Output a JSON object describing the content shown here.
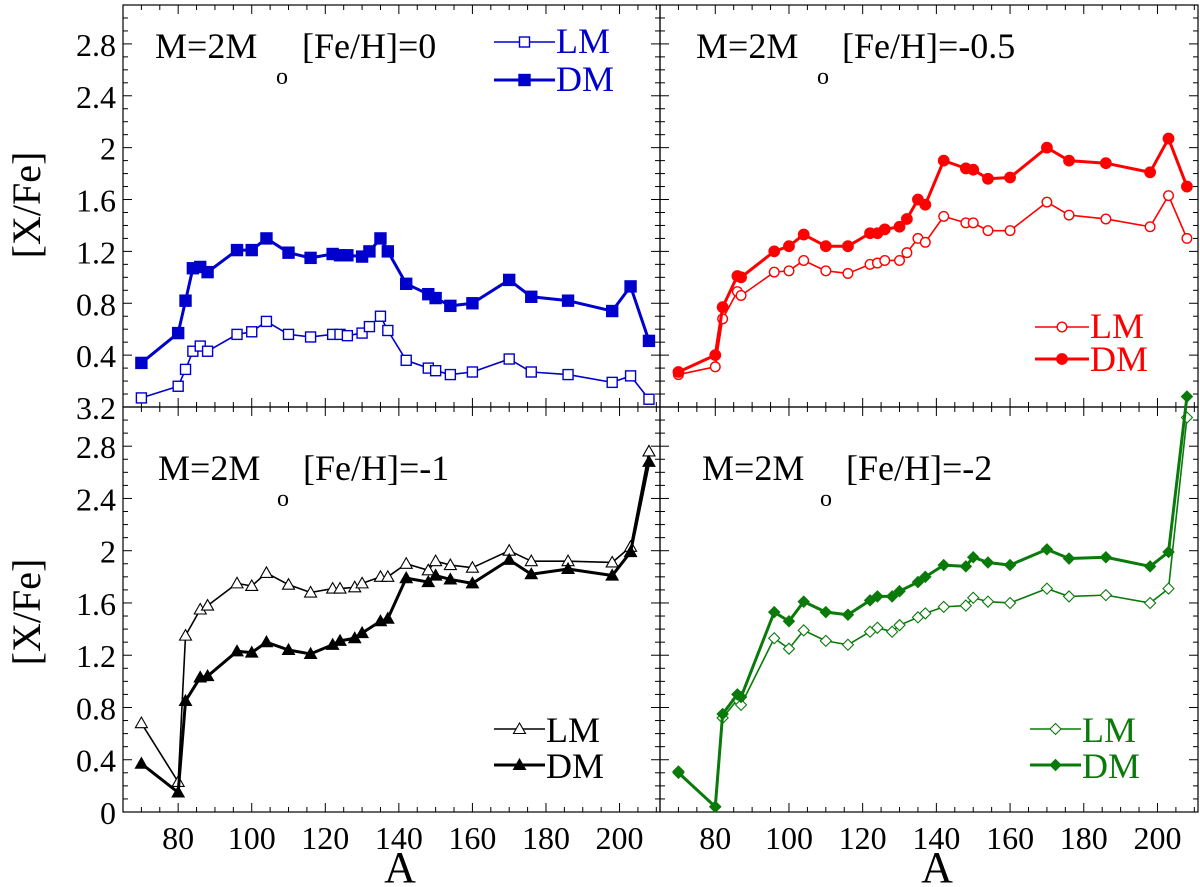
{
  "chart_data": [
    {
      "type": "line",
      "title": "M=2M",
      "title_subscript": "o",
      "metallicity": "[Fe/H]=0",
      "xlabel": "",
      "ylabel": "[X/Fe]",
      "xlim": [
        65,
        211
      ],
      "ylim": [
        0,
        3.1
      ],
      "color": "#0000cc",
      "marker": "square",
      "legend_position": "top-right",
      "yticks": [
        "3.2",
        "0.4",
        "0.8",
        "1.2",
        "1.6",
        "2",
        "2.4",
        "2.8"
      ],
      "x": [
        70,
        80,
        82,
        84,
        86,
        88,
        96,
        100,
        104,
        110,
        116,
        122,
        124,
        126,
        130,
        132,
        135,
        137,
        142,
        148,
        150,
        154,
        160,
        170,
        176,
        186,
        198,
        203,
        208
      ],
      "series": [
        {
          "name": "LM",
          "filled": false,
          "values": [
            0.07,
            0.16,
            0.29,
            0.43,
            0.47,
            0.43,
            0.56,
            0.58,
            0.66,
            0.56,
            0.54,
            0.56,
            0.56,
            0.55,
            0.57,
            0.62,
            0.7,
            0.59,
            0.36,
            0.3,
            0.28,
            0.25,
            0.27,
            0.37,
            0.27,
            0.25,
            0.19,
            0.24,
            0.06
          ]
        },
        {
          "name": "DM",
          "filled": true,
          "values": [
            0.34,
            0.57,
            0.82,
            1.07,
            1.08,
            1.04,
            1.21,
            1.21,
            1.3,
            1.19,
            1.15,
            1.18,
            1.17,
            1.17,
            1.16,
            1.2,
            1.3,
            1.2,
            0.95,
            0.87,
            0.84,
            0.78,
            0.8,
            0.98,
            0.85,
            0.82,
            0.74,
            0.93,
            0.51
          ]
        }
      ]
    },
    {
      "type": "line",
      "title": "M=2M",
      "title_subscript": "o",
      "metallicity": "[Fe/H]=-0.5",
      "xlabel": "",
      "ylabel": "",
      "xlim": [
        65,
        211
      ],
      "ylim": [
        0,
        3.1
      ],
      "color": "#ff0000",
      "marker": "circle",
      "legend_position": "bottom-right",
      "x": [
        70,
        80,
        82,
        86,
        87,
        96,
        100,
        104,
        110,
        116,
        122,
        124,
        126,
        130,
        132,
        135,
        137,
        142,
        148,
        150,
        154,
        160,
        170,
        176,
        186,
        198,
        203,
        208
      ],
      "series": [
        {
          "name": "LM",
          "filled": false,
          "values": [
            0.25,
            0.31,
            0.68,
            0.89,
            0.86,
            1.04,
            1.05,
            1.13,
            1.05,
            1.03,
            1.1,
            1.11,
            1.13,
            1.13,
            1.19,
            1.3,
            1.27,
            1.47,
            1.42,
            1.42,
            1.36,
            1.36,
            1.58,
            1.48,
            1.45,
            1.39,
            1.63,
            1.3
          ]
        },
        {
          "name": "DM",
          "filled": true,
          "values": [
            0.27,
            0.4,
            0.77,
            1.01,
            1.0,
            1.2,
            1.24,
            1.33,
            1.24,
            1.24,
            1.34,
            1.34,
            1.37,
            1.39,
            1.45,
            1.6,
            1.56,
            1.9,
            1.84,
            1.83,
            1.76,
            1.77,
            2.0,
            1.9,
            1.88,
            1.81,
            2.07,
            1.7
          ]
        }
      ]
    },
    {
      "type": "line",
      "title": "M=2M",
      "title_subscript": "o",
      "metallicity": "[Fe/H]=-1",
      "xlabel": "A",
      "ylabel": "[X/Fe]",
      "xlim": [
        65,
        211
      ],
      "ylim": [
        0,
        3.1
      ],
      "color": "#000000",
      "marker": "triangle",
      "legend_position": "bottom-right",
      "yticks": [
        "0",
        "0.4",
        "0.8",
        "1.2",
        "1.6",
        "2",
        "2.4",
        "2.8"
      ],
      "xticks": [
        "80",
        "100",
        "120",
        "140",
        "160",
        "180",
        "200"
      ],
      "x": [
        70,
        80,
        82,
        86,
        88,
        96,
        100,
        104,
        110,
        116,
        122,
        124,
        128,
        130,
        135,
        137,
        142,
        148,
        150,
        154,
        160,
        170,
        176,
        186,
        198,
        203,
        208
      ],
      "series": [
        {
          "name": "LM",
          "filled": false,
          "values": [
            0.68,
            0.23,
            1.35,
            1.55,
            1.58,
            1.75,
            1.73,
            1.83,
            1.74,
            1.68,
            1.71,
            1.71,
            1.72,
            1.75,
            1.8,
            1.8,
            1.9,
            1.85,
            1.92,
            1.89,
            1.87,
            2.0,
            1.92,
            1.92,
            1.91,
            2.03,
            2.76
          ]
        },
        {
          "name": "DM",
          "filled": true,
          "values": [
            0.37,
            0.15,
            0.85,
            1.03,
            1.04,
            1.23,
            1.22,
            1.3,
            1.24,
            1.21,
            1.28,
            1.31,
            1.33,
            1.37,
            1.46,
            1.48,
            1.79,
            1.76,
            1.81,
            1.78,
            1.75,
            1.93,
            1.82,
            1.86,
            1.81,
            1.99,
            2.68
          ]
        }
      ]
    },
    {
      "type": "line",
      "title": "M=2M",
      "title_subscript": "o",
      "metallicity": "[Fe/H]=-2",
      "xlabel": "A",
      "ylabel": "",
      "xlim": [
        65,
        211
      ],
      "ylim": [
        0,
        3.1
      ],
      "color": "#0a7a0a",
      "marker": "diamond",
      "legend_position": "bottom-right",
      "xticks": [
        "80",
        "100",
        "120",
        "140",
        "160",
        "180",
        "200"
      ],
      "x": [
        70,
        80,
        82,
        86,
        87,
        96,
        100,
        104,
        110,
        116,
        122,
        124,
        128,
        130,
        135,
        137,
        142,
        148,
        150,
        154,
        160,
        170,
        176,
        186,
        198,
        203,
        208
      ],
      "series": [
        {
          "name": "LM",
          "filled": false,
          "values": [
            0.31,
            0.04,
            0.72,
            0.86,
            0.82,
            1.33,
            1.25,
            1.39,
            1.31,
            1.28,
            1.38,
            1.41,
            1.38,
            1.43,
            1.49,
            1.52,
            1.57,
            1.58,
            1.64,
            1.61,
            1.6,
            1.71,
            1.65,
            1.66,
            1.6,
            1.71,
            3.02
          ]
        },
        {
          "name": "DM",
          "filled": true,
          "values": [
            0.3,
            0.04,
            0.75,
            0.9,
            0.88,
            1.53,
            1.46,
            1.61,
            1.53,
            1.51,
            1.62,
            1.65,
            1.65,
            1.69,
            1.76,
            1.8,
            1.89,
            1.88,
            1.95,
            1.91,
            1.89,
            2.01,
            1.94,
            1.95,
            1.88,
            1.99,
            3.18
          ]
        }
      ]
    }
  ]
}
